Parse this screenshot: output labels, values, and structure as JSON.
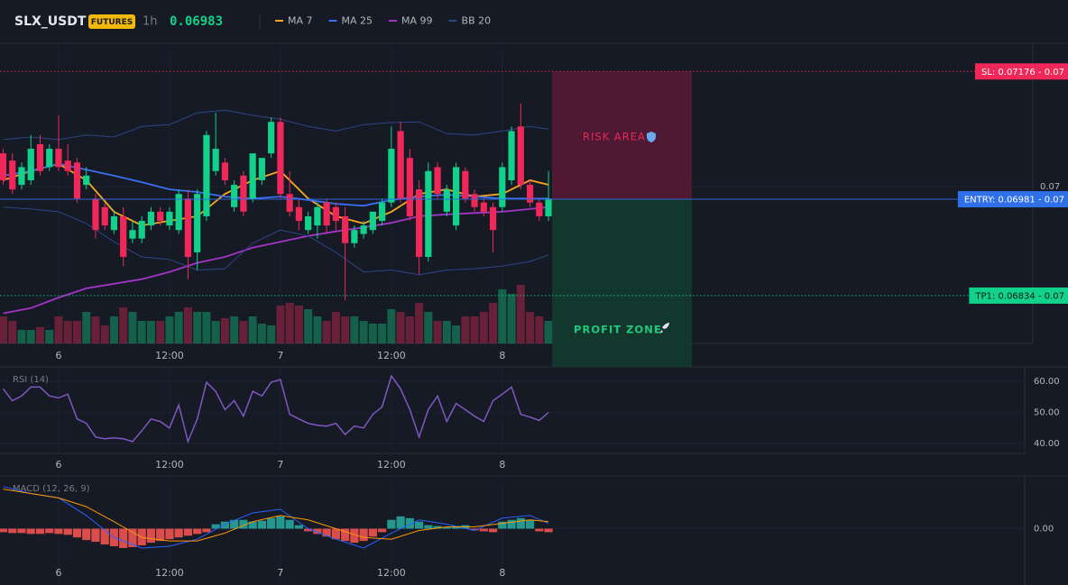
{
  "header": {
    "symbol": "SLX_USDT",
    "badge": "FUTURES",
    "interval": "1h",
    "price": 0.06983
  },
  "chart_data": [
    {
      "type": "candlestick",
      "x": [
        0,
        1,
        2,
        3,
        4,
        5,
        6,
        7,
        8,
        9,
        10,
        11,
        12,
        13,
        14,
        15,
        16,
        17,
        18,
        19,
        20,
        21,
        22,
        23,
        24,
        25,
        26,
        27,
        28,
        29,
        30,
        31,
        32,
        33,
        34,
        35,
        36,
        37,
        38,
        39,
        40,
        41,
        42,
        43,
        44,
        45,
        46,
        47,
        48,
        49,
        50,
        51,
        52,
        53,
        54,
        55,
        56,
        57,
        58,
        59
      ],
      "ohlc": [
        [
          0.07051,
          0.07058,
          0.07003,
          0.0701
        ],
        [
          0.0704,
          0.07051,
          0.06989,
          0.06996
        ],
        [
          0.07003,
          0.07037,
          0.06996,
          0.0703
        ],
        [
          0.0701,
          0.07079,
          0.07003,
          0.07058
        ],
        [
          0.07065,
          0.07079,
          0.07017,
          0.07024
        ],
        [
          0.0703,
          0.07065,
          0.07024,
          0.07058
        ],
        [
          0.07058,
          0.07109,
          0.07024,
          0.0703
        ],
        [
          0.0704,
          0.07065,
          0.07017,
          0.07024
        ],
        [
          0.07037,
          0.07044,
          0.06976,
          0.06982
        ],
        [
          0.07003,
          0.0703,
          0.06996,
          0.07017
        ],
        [
          0.06982,
          0.06989,
          0.06921,
          0.06934
        ],
        [
          0.06969,
          0.06976,
          0.06934,
          0.06941
        ],
        [
          0.06934,
          0.06962,
          0.06928,
          0.06955
        ],
        [
          0.06955,
          0.06969,
          0.06879,
          0.06893
        ],
        [
          0.06921,
          0.06948,
          0.06914,
          0.06934
        ],
        [
          0.06921,
          0.06955,
          0.06914,
          0.06948
        ],
        [
          0.06941,
          0.06969,
          0.06934,
          0.06962
        ],
        [
          0.06962,
          0.06969,
          0.06941,
          0.06948
        ],
        [
          0.06941,
          0.06969,
          0.06934,
          0.06962
        ],
        [
          0.06934,
          0.06996,
          0.06928,
          0.06989
        ],
        [
          0.06982,
          0.06996,
          0.06859,
          0.06893
        ],
        [
          0.069,
          0.06996,
          0.06873,
          0.06989
        ],
        [
          0.06955,
          0.07085,
          0.06948,
          0.07079
        ],
        [
          0.07024,
          0.07113,
          0.07017,
          0.07058
        ],
        [
          0.07037,
          0.07044,
          0.07003,
          0.0701
        ],
        [
          0.06969,
          0.0701,
          0.06962,
          0.07003
        ],
        [
          0.07017,
          0.07024,
          0.06955,
          0.06962
        ],
        [
          0.06982,
          0.07051,
          0.06976,
          0.07051
        ],
        [
          0.0701,
          0.07044,
          0.07003,
          0.07044
        ],
        [
          0.07051,
          0.07106,
          0.07044,
          0.07099
        ],
        [
          0.07099,
          0.07106,
          0.06982,
          0.06989
        ],
        [
          0.06989,
          0.07024,
          0.06955,
          0.06962
        ],
        [
          0.06969,
          0.06982,
          0.06934,
          0.06948
        ],
        [
          0.06934,
          0.06962,
          0.06928,
          0.06955
        ],
        [
          0.06941,
          0.06976,
          0.06921,
          0.06969
        ],
        [
          0.06976,
          0.06982,
          0.06928,
          0.06941
        ],
        [
          0.06969,
          0.06976,
          0.06934,
          0.06948
        ],
        [
          0.06955,
          0.06969,
          0.06827,
          0.06914
        ],
        [
          0.06914,
          0.06941,
          0.06907,
          0.06934
        ],
        [
          0.06928,
          0.06948,
          0.06921,
          0.06941
        ],
        [
          0.06934,
          0.06962,
          0.06928,
          0.06962
        ],
        [
          0.06948,
          0.06982,
          0.06941,
          0.06976
        ],
        [
          0.06976,
          0.07092,
          0.06969,
          0.07058
        ],
        [
          0.07085,
          0.07099,
          0.06976,
          0.06982
        ],
        [
          0.07044,
          0.07058,
          0.06948,
          0.06955
        ],
        [
          0.06996,
          0.0701,
          0.06866,
          0.06893
        ],
        [
          0.06893,
          0.07037,
          0.06886,
          0.07024
        ],
        [
          0.0703,
          0.07037,
          0.06982,
          0.06989
        ],
        [
          0.06962,
          0.07003,
          0.06955,
          0.06996
        ],
        [
          0.06941,
          0.07037,
          0.06934,
          0.0703
        ],
        [
          0.07024,
          0.0703,
          0.06976,
          0.06982
        ],
        [
          0.06989,
          0.06996,
          0.06962,
          0.06969
        ],
        [
          0.06976,
          0.06982,
          0.06955,
          0.06962
        ],
        [
          0.06969,
          0.06976,
          0.069,
          0.06934
        ],
        [
          0.06969,
          0.07037,
          0.06962,
          0.0703
        ],
        [
          0.0701,
          0.07092,
          0.07003,
          0.07085
        ],
        [
          0.07092,
          0.07127,
          0.06996,
          0.07003
        ],
        [
          0.07003,
          0.0701,
          0.06969,
          0.06976
        ],
        [
          0.06976,
          0.06982,
          0.06948,
          0.06955
        ],
        [
          0.06955,
          0.07024,
          0.06948,
          0.06982
        ]
      ],
      "up_color": "#12d18a",
      "down_color": "#f0285a",
      "volume": [
        30,
        25,
        15,
        15,
        18,
        15,
        30,
        25,
        25,
        35,
        30,
        20,
        30,
        40,
        35,
        25,
        25,
        25,
        30,
        35,
        40,
        35,
        35,
        25,
        28,
        30,
        25,
        30,
        22,
        20,
        42,
        45,
        42,
        38,
        30,
        25,
        35,
        30,
        30,
        25,
        22,
        22,
        38,
        35,
        30,
        45,
        35,
        25,
        25,
        20,
        30,
        30,
        35,
        45,
        60,
        55,
        65,
        35,
        30,
        25
      ],
      "vlim": [
        0,
        100
      ],
      "series": [
        {
          "name": "MA 7",
          "color": "#f5a623",
          "x": [
            0,
            3,
            6,
            9,
            12,
            15,
            18,
            21,
            24,
            27,
            30,
            33,
            36,
            39,
            42,
            45,
            48,
            51,
            54,
            57,
            59
          ],
          "values": [
            0.0701,
            0.07024,
            0.07035,
            0.0701,
            0.06962,
            0.06941,
            0.06948,
            0.06955,
            0.06989,
            0.0701,
            0.07024,
            0.06982,
            0.06955,
            0.06944,
            0.06962,
            0.06989,
            0.06996,
            0.06985,
            0.06989,
            0.0701,
            0.07003
          ]
        },
        {
          "name": "MA 25",
          "color": "#3b6ff0",
          "x": [
            0,
            3,
            6,
            9,
            12,
            15,
            18,
            21,
            24,
            27,
            30,
            33,
            36,
            39,
            42,
            45,
            48,
            51,
            54,
            57,
            59
          ],
          "values": [
            0.07017,
            0.07024,
            0.07035,
            0.07026,
            0.07017,
            0.07007,
            0.06996,
            0.06992,
            0.06985,
            0.06982,
            0.06985,
            0.0698,
            0.06974,
            0.06971,
            0.0698,
            0.06985,
            0.06988,
            0.06985,
            0.06982,
            0.06982,
            0.06982
          ]
        },
        {
          "name": "MA 99",
          "color": "#a234c7",
          "x": [
            0,
            3,
            6,
            9,
            12,
            15,
            18,
            21,
            24,
            27,
            30,
            33,
            36,
            39,
            42,
            45,
            48,
            51,
            54,
            57,
            59
          ],
          "values": [
            0.06807,
            0.06815,
            0.06831,
            0.06845,
            0.06852,
            0.06859,
            0.0687,
            0.06884,
            0.06893,
            0.06907,
            0.06916,
            0.06925,
            0.06932,
            0.06938,
            0.06945,
            0.06955,
            0.06958,
            0.0696,
            0.06962,
            0.06966,
            0.06969
          ]
        },
        {
          "name": "BB 20",
          "color": "#2c4584",
          "x": [
            0,
            3,
            6,
            9,
            12,
            15,
            18,
            21,
            24,
            27,
            30,
            33,
            36,
            39,
            42,
            45,
            48,
            51,
            54,
            57,
            59
          ],
          "values": [
            0.07072,
            0.07076,
            0.07072,
            0.07079,
            0.07076,
            0.07092,
            0.07095,
            0.07113,
            0.07117,
            0.07109,
            0.07103,
            0.07092,
            0.07085,
            0.07095,
            0.07098,
            0.07099,
            0.07081,
            0.07079,
            0.07085,
            0.07092,
            0.07088
          ],
          "lower": [
            0.06969,
            0.06966,
            0.06962,
            0.06944,
            0.06916,
            0.06893,
            0.06889,
            0.06873,
            0.06875,
            0.06914,
            0.06934,
            0.06925,
            0.069,
            0.0687,
            0.06873,
            0.06866,
            0.06873,
            0.06875,
            0.06879,
            0.06886,
            0.06896
          ]
        }
      ],
      "xlim": [
        -0.34,
        111.4
      ],
      "xticks": [
        6,
        {
          "value": 18,
          "label": "12:00"
        },
        {
          "value": 30,
          "label": "7"
        },
        {
          "value": 42,
          "label": "12:00"
        },
        {
          "value": 54,
          "label": "8"
        }
      ],
      "ylim": [
        0.06761,
        0.07219
      ],
      "yticks": [
        0.07
      ],
      "levels": [
        {
          "label": "SL: 0.07176 - 0.07",
          "value": 0.07176,
          "color": "#f0285a",
          "text_color": "#ffffff",
          "style": "dotted"
        },
        {
          "label": "ENTRY: 0.06981 - 0.07",
          "value": 0.06981,
          "color": "#2f6fe8",
          "text_color": "#ffffff",
          "style": "solid"
        },
        {
          "label": "TP1: 0.06834 - 0.07",
          "value": 0.06834,
          "color": "#12d18a",
          "text_color": "#0b1a12",
          "style": "dotted"
        }
      ],
      "zones": [
        {
          "label": "RISK AREA",
          "color": "#e8275a",
          "fill": "#5a1a36"
        },
        {
          "label": "PROFIT ZONE",
          "color": "#22c97c",
          "fill": "#123d2f"
        }
      ]
    },
    {
      "type": "line",
      "title": "RSI (14)",
      "color": "#7e57c2",
      "values": [
        57.6,
        53.8,
        55.3,
        58.2,
        58.2,
        55.3,
        54.7,
        55.9,
        47.9,
        46.5,
        42.1,
        41.5,
        41.8,
        41.5,
        40.6,
        44.1,
        47.9,
        47.1,
        45.0,
        52.4,
        40.6,
        47.9,
        59.7,
        56.8,
        50.9,
        53.8,
        48.8,
        56.8,
        55.3,
        59.7,
        60.6,
        49.4,
        47.9,
        46.5,
        45.9,
        45.6,
        46.5,
        42.9,
        45.6,
        45.0,
        49.4,
        51.8,
        61.8,
        57.6,
        50.9,
        42.1,
        50.9,
        55.3,
        47.1,
        52.9,
        50.9,
        48.8,
        47.1,
        53.8,
        55.9,
        58.2,
        49.4,
        48.5,
        47.4,
        50.0
      ],
      "ylim": [
        36.8,
        64.7
      ],
      "yticks": [
        {
          "value": 60,
          "label": "60.00"
        },
        {
          "value": 50,
          "label": "50.00"
        },
        {
          "value": 40,
          "label": "40.00"
        }
      ]
    },
    {
      "type": "macd",
      "title": "MACD (12, 26, 9)",
      "up_color": "#26a69a",
      "down_color": "#ef5350",
      "histogram": [
        -8e-06,
        -1e-05,
        -1e-05,
        -1.2e-05,
        -1.2e-05,
        -1e-05,
        -1.2e-05,
        -1.4e-05,
        -2e-05,
        -2.6e-05,
        -3e-05,
        -3.6e-05,
        -4e-05,
        -4.4e-05,
        -4.2e-05,
        -3.8e-05,
        -3.2e-05,
        -2.8e-05,
        -2.4e-05,
        -2e-05,
        -1.6e-05,
        -1.2e-05,
        -8e-06,
        1e-05,
        1.6e-05,
        2e-05,
        2e-05,
        1.6e-05,
        1.8e-05,
        2.4e-05,
        2.8e-05,
        2e-05,
        8e-06,
        -6e-06,
        -1.2e-05,
        -1.8e-05,
        -2.4e-05,
        -2.8e-05,
        -3.2e-05,
        -2.8e-05,
        -1.8e-05,
        -8e-06,
        2e-05,
        2.8e-05,
        2.4e-05,
        1.6e-05,
        8e-06,
        6e-06,
        4e-06,
        6e-06,
        8e-06,
        -4e-06,
        -6e-06,
        -8e-06,
        1.6e-05,
        2e-05,
        2.4e-05,
        2e-05,
        -6e-06,
        -8e-06
      ],
      "series": [
        {
          "color": "#2962ff",
          "x": [
            0,
            3,
            6,
            9,
            12,
            15,
            18,
            21,
            24,
            27,
            30,
            33,
            36,
            39,
            42,
            45,
            48,
            51,
            54,
            57,
            59
          ],
          "values": [
            9.6e-05,
            8e-05,
            7e-05,
            3e-05,
            -2e-05,
            -4.4e-05,
            -4e-05,
            -2.4e-05,
            1e-05,
            3.6e-05,
            4.4e-05,
            0,
            -2.4e-05,
            -4.4e-05,
            -1e-05,
            2e-05,
            1e-05,
            -4e-06,
            2.4e-05,
            3e-05,
            1.2e-05
          ]
        },
        {
          "color": "#ff9800",
          "x": [
            0,
            3,
            6,
            9,
            12,
            15,
            18,
            21,
            24,
            27,
            30,
            33,
            36,
            39,
            42,
            45,
            48,
            51,
            54,
            57,
            59
          ],
          "values": [
            9e-05,
            8e-05,
            7e-05,
            5e-05,
            1.6e-05,
            -2e-05,
            -2.8e-05,
            -2.8e-05,
            -1e-05,
            1.6e-05,
            3e-05,
            2e-05,
            0,
            -2e-05,
            -2.4e-05,
            -4e-06,
            4e-06,
            4e-06,
            1.2e-05,
            2e-05,
            1.6e-05
          ]
        }
      ],
      "ylim": [
        -0.00012,
        0.00012
      ],
      "yticks": [
        {
          "value": 0,
          "label": "0.00"
        }
      ]
    }
  ]
}
